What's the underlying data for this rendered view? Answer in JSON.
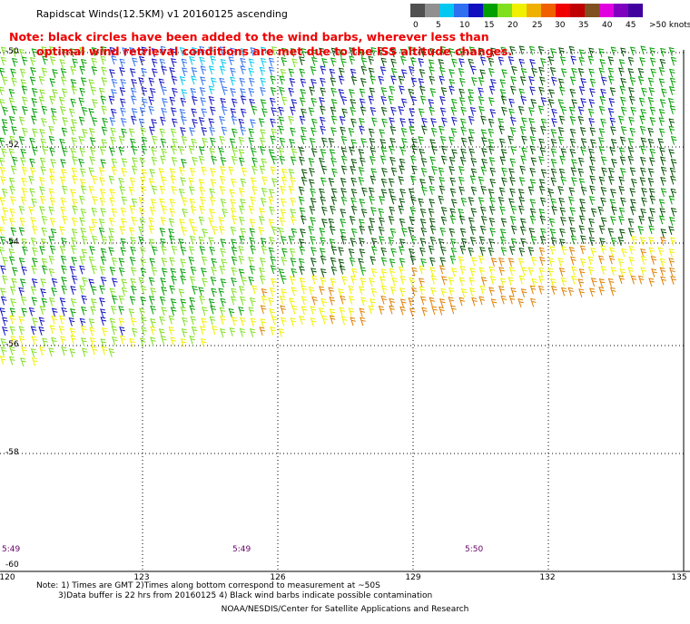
{
  "header": {
    "title": "Rapidscat Winds(12.5KM) v1 20160125 ascending",
    "note_line1": "Note: black circles have been added to the wind barbs, wherever less than",
    "note_line2": "optimal wind retrieval conditions are met due to the ISS altitude changes."
  },
  "legend": {
    "unit": "knots",
    "colors": [
      "#505050",
      "#909090",
      "#00c8f0",
      "#3070f0",
      "#1010c0",
      "#00a000",
      "#80e020",
      "#f0f000",
      "#f0b000",
      "#f06000",
      "#f00000",
      "#c00000",
      "#805020",
      "#e000e0",
      "#8000c0",
      "#4000a0"
    ],
    "labels": [
      "0",
      "5",
      "10",
      "15",
      "20",
      "25",
      "30",
      "35",
      "40",
      "45",
      ">50 knots"
    ]
  },
  "map": {
    "lat_labels": [
      "-50",
      "-52",
      "-54",
      "-56",
      "-58",
      "-60"
    ],
    "lon_labels": [
      "120",
      "123",
      "126",
      "129",
      "132",
      "135"
    ],
    "lat_range": [
      -60,
      -50
    ],
    "lon_range": [
      120,
      135
    ],
    "times": [
      "5:49",
      "5:49",
      "5:50"
    ]
  },
  "footer": {
    "line1": "Note: 1) Times are GMT 2)Times along bottom correspond to measurement at ~50S",
    "line2": "3)Data buffer is 22 hrs from 20160125 4) Black wind barbs indicate possible contamination",
    "credit": "NOAA/NESDIS/Center for Satellite Applications and Research"
  }
}
